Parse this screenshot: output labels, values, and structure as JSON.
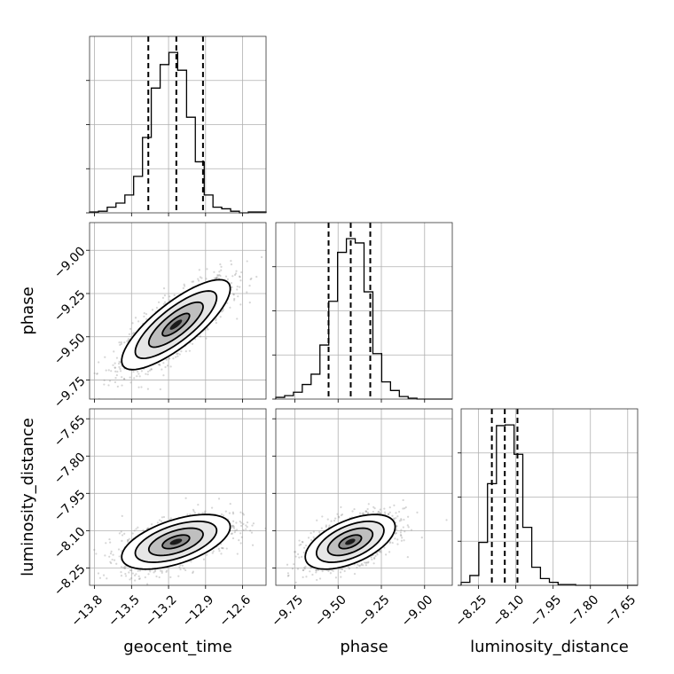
{
  "chart_data": {
    "type": "corner",
    "parameters": [
      "geocent_time",
      "phase",
      "luminosity_distance"
    ],
    "axis_labels": {
      "geocent_time": "geocent_time",
      "phase": "phase",
      "luminosity_distance": "luminosity_distance"
    },
    "ranges": {
      "geocent_time": [
        -13.84,
        -12.41
      ],
      "phase": [
        -9.86,
        -8.84
      ],
      "luminosity_distance": [
        -8.32,
        -7.61
      ]
    },
    "ticks": {
      "geocent_time": [
        -13.8,
        -13.5,
        -13.2,
        -12.9,
        -12.6
      ],
      "phase": [
        -9.75,
        -9.5,
        -9.25,
        -9.0
      ],
      "luminosity_distance": [
        -8.25,
        -8.1,
        -7.95,
        -7.8,
        -7.65
      ]
    },
    "tick_labels": {
      "geocent_time": [
        "−13.8",
        "−13.5",
        "−13.2",
        "−12.9",
        "−12.6"
      ],
      "phase": [
        "−9.75",
        "−9.50",
        "−9.25",
        "−9.00"
      ],
      "luminosity_distance": [
        "−8.25",
        "−8.10",
        "−7.95",
        "−7.80",
        "−7.65"
      ]
    },
    "quantiles": {
      "geocent_time": [
        -13.364,
        -13.137,
        -12.921
      ],
      "phase": [
        -9.555,
        -9.427,
        -9.314
      ],
      "luminosity_distance": [
        -8.1965,
        -8.1445,
        -8.0935
      ]
    },
    "histograms": {
      "geocent_time": {
        "bins": [
          -13.84,
          -13.768,
          -13.697,
          -13.626,
          -13.554,
          -13.483,
          -13.411,
          -13.34,
          -13.268,
          -13.197,
          -13.126,
          -13.054,
          -12.983,
          -12.911,
          -12.84,
          -12.769,
          -12.697,
          -12.626,
          -12.554,
          -12.483,
          -12.41
        ],
        "counts": [
          1,
          2,
          7,
          12,
          22,
          45,
          93,
          154,
          183,
          198,
          176,
          118,
          63,
          22,
          7,
          5,
          2,
          0,
          1,
          1
        ]
      },
      "phase": {
        "bins": [
          -9.86,
          -9.809,
          -9.758,
          -9.707,
          -9.656,
          -9.605,
          -9.554,
          -9.503,
          -9.452,
          -9.401,
          -9.35,
          -9.299,
          -9.248,
          -9.197,
          -9.146,
          -9.095,
          -9.044,
          -8.993,
          -8.942,
          -8.891,
          -8.84
        ],
        "counts": [
          2,
          4,
          8,
          17,
          29,
          63,
          114,
          171,
          187,
          182,
          125,
          53,
          20,
          10,
          3,
          1,
          0,
          0,
          0,
          0
        ]
      },
      "luminosity_distance": {
        "bins": [
          -8.32,
          -8.285,
          -8.249,
          -8.214,
          -8.178,
          -8.143,
          -8.107,
          -8.072,
          -8.036,
          -8.001,
          -7.965,
          -7.93,
          -7.894,
          -7.859,
          -7.823,
          -7.788,
          -7.752,
          -7.717,
          -7.681,
          -7.646,
          -7.61
        ],
        "counts": [
          4,
          13,
          57,
          135,
          212,
          213,
          174,
          77,
          24,
          9,
          4,
          1,
          1,
          0,
          0,
          0,
          0,
          0,
          0,
          0
        ]
      }
    },
    "pairs": [
      {
        "x": "geocent_time",
        "y": "phase",
        "mean": [
          -13.14,
          -9.43
        ],
        "std": [
          0.22,
          0.13
        ],
        "correlation": 0.8
      },
      {
        "x": "geocent_time",
        "y": "luminosity_distance",
        "mean": [
          -13.14,
          -8.145
        ],
        "std": [
          0.22,
          0.055
        ],
        "correlation": 0.55
      },
      {
        "x": "phase",
        "y": "luminosity_distance",
        "mean": [
          -9.43,
          -8.145
        ],
        "std": [
          0.13,
          0.055
        ],
        "correlation": 0.55
      }
    ],
    "contour_levels_sigma": [
      0.5,
      1.0,
      1.5,
      2.0
    ],
    "grid": true,
    "legend": "none"
  }
}
